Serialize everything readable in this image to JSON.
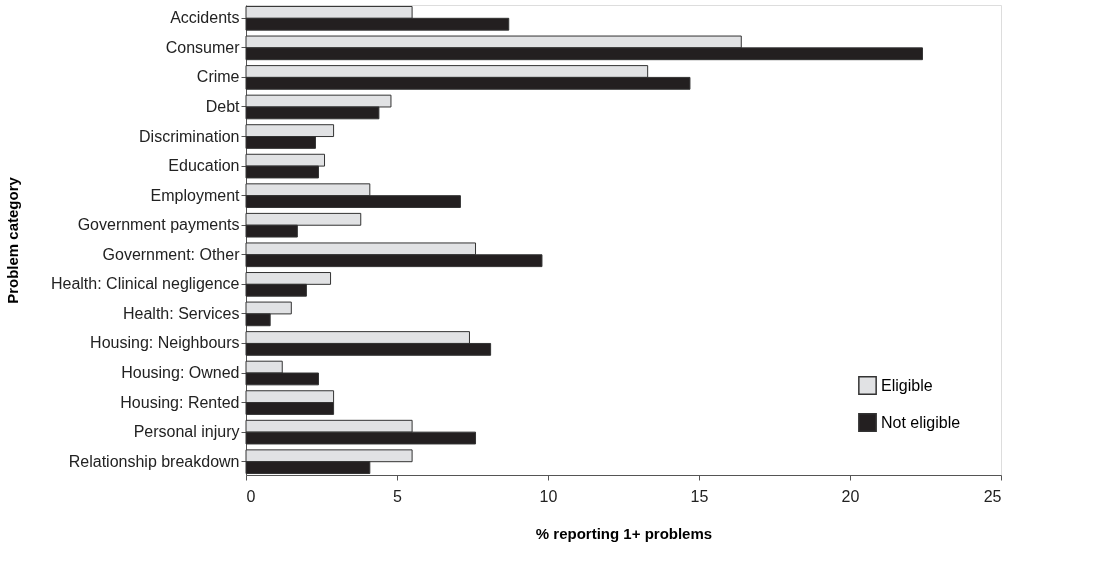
{
  "chart_data": {
    "type": "bar",
    "orientation": "horizontal",
    "xlabel": "% reporting 1+ problems",
    "ylabel": "Problem category",
    "categories": [
      "Accidents",
      "Consumer",
      "Crime",
      "Debt",
      "Discrimination",
      "Education",
      "Employment",
      "Government payments",
      "Government: Other",
      "Health: Clinical negligence",
      "Health: Services",
      "Housing: Neighbours",
      "Housing: Owned",
      "Housing: Rented",
      "Personal injury",
      "Relationship breakdown"
    ],
    "series": [
      {
        "name": "Eligible",
        "color": "#e1e2e4",
        "values": [
          5.5,
          16.4,
          13.3,
          4.8,
          2.9,
          2.6,
          4.1,
          3.8,
          7.6,
          2.8,
          1.5,
          7.4,
          1.2,
          2.9,
          5.5,
          5.5
        ]
      },
      {
        "name": "Not eligible",
        "color": "#231f20",
        "values": [
          8.7,
          22.4,
          14.7,
          4.4,
          2.3,
          2.4,
          7.1,
          1.7,
          9.8,
          2.0,
          0.8,
          8.1,
          2.4,
          2.9,
          7.6,
          4.1
        ]
      }
    ],
    "xlim": [
      0,
      25
    ],
    "xticks": [
      0,
      5,
      10,
      15,
      20,
      25
    ],
    "grid": false,
    "legend": "bottom right"
  }
}
